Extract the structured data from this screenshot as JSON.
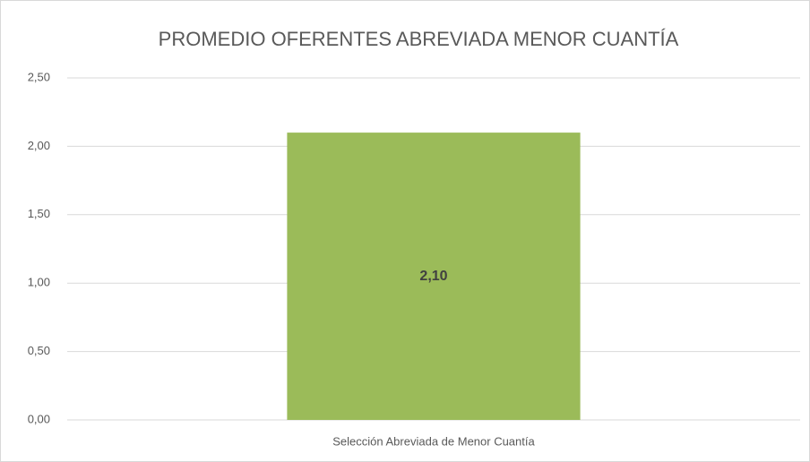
{
  "chart_data": {
    "type": "bar",
    "title": "PROMEDIO OFERENTES ABREVIADA MENOR CUANTÍA",
    "categories": [
      "Selección Abreviada de Menor Cuantía"
    ],
    "values": [
      2.1
    ],
    "value_labels": [
      "2,10"
    ],
    "color": "#9bbb59",
    "ylim": [
      0,
      2.5
    ],
    "yticks": [
      {
        "value": 0,
        "label": "0,00"
      },
      {
        "value": 0.5,
        "label": "0,50"
      },
      {
        "value": 1,
        "label": "1,00"
      },
      {
        "value": 1.5,
        "label": "1,50"
      },
      {
        "value": 2,
        "label": "2,00"
      },
      {
        "value": 2.5,
        "label": "2,50"
      }
    ],
    "grid": true
  }
}
